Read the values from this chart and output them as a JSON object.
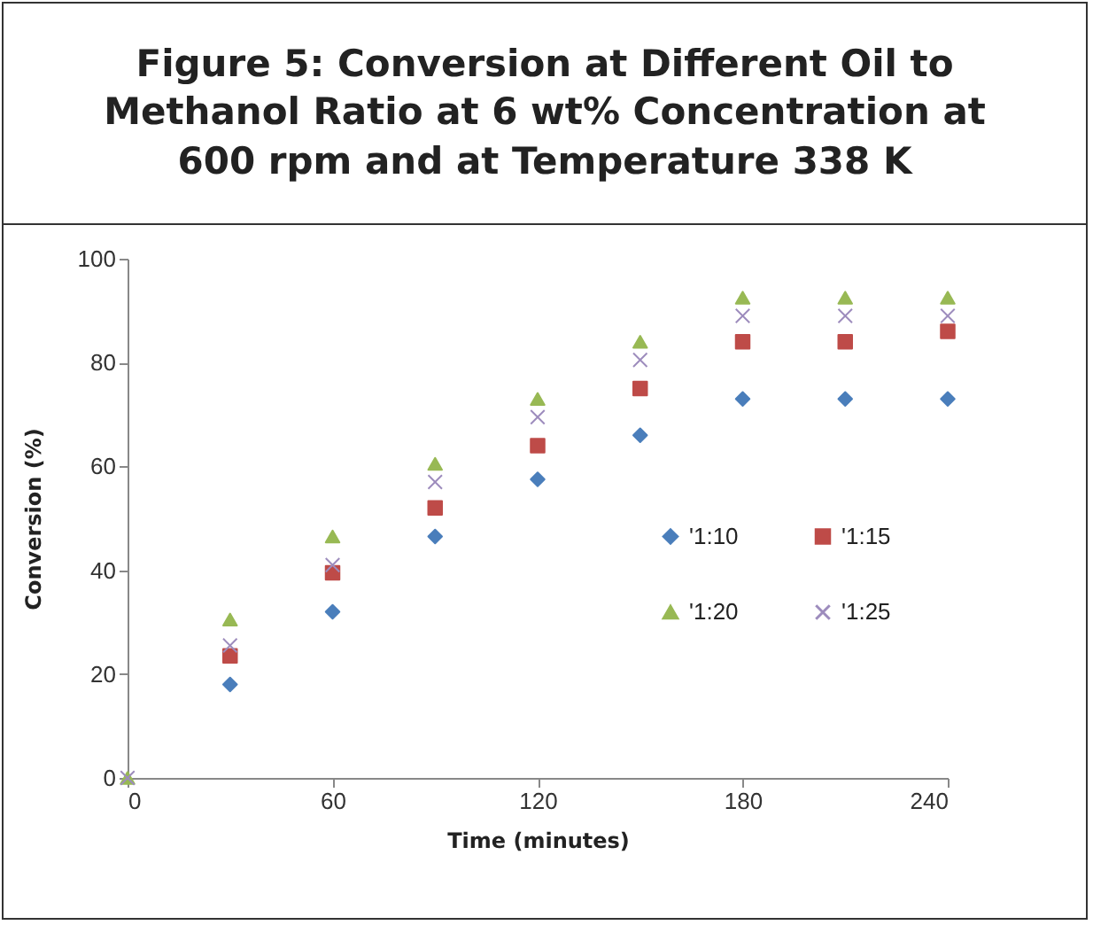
{
  "chart_data": {
    "type": "scatter",
    "title": "Figure 5: Conversion at Different Oil to Methanol Ratio at 6 wt% Concentration at 600 rpm and at Temperature 338 K",
    "xlabel": "Time (minutes)",
    "ylabel": "Conversion (%)",
    "x": [
      0,
      30,
      60,
      90,
      120,
      150,
      180,
      210,
      240
    ],
    "series": [
      {
        "name": "'1:10",
        "color": "#4a7ebb",
        "marker": "diamond",
        "values": [
          null,
          18,
          32,
          46.5,
          57.5,
          66,
          73,
          73,
          73
        ]
      },
      {
        "name": "'1:15",
        "color": "#be4b48",
        "marker": "square",
        "values": [
          null,
          23.5,
          39.5,
          52,
          64,
          75,
          84,
          84,
          86
        ]
      },
      {
        "name": "'1:20",
        "color": "#98b954",
        "marker": "triangle",
        "values": [
          0,
          30.5,
          46.5,
          60.5,
          73,
          84,
          92.5,
          92.5,
          92.5
        ]
      },
      {
        "name": "'1:25",
        "color": "#9d8cbd",
        "marker": "cross",
        "values": [
          0,
          25.5,
          41,
          57,
          69.5,
          80.5,
          89,
          89,
          89
        ]
      }
    ],
    "xlim": [
      0,
      240
    ],
    "xticks": [
      0,
      60,
      120,
      180,
      240
    ],
    "ylim": [
      0,
      100
    ],
    "yticks": [
      0,
      20,
      40,
      60,
      80,
      100
    ],
    "grid": false,
    "legend": "right"
  }
}
